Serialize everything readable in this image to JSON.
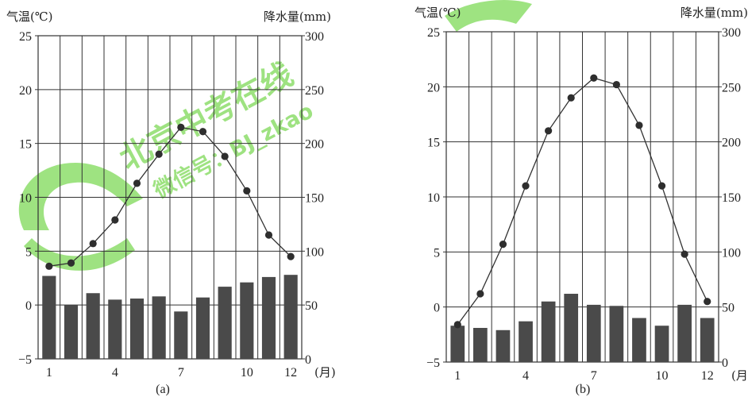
{
  "chart_data": [
    {
      "type": "bar+line",
      "caption": "(a)",
      "y_left_label": "气温(℃)",
      "y_right_label": "降水量(mm)",
      "x_unit_label": "(月)",
      "x_tick_labels": [
        "1",
        "4",
        "7",
        "10",
        "12"
      ],
      "months": [
        1,
        2,
        3,
        4,
        5,
        6,
        7,
        8,
        9,
        10,
        11,
        12
      ],
      "temperature_c": [
        3.6,
        3.9,
        5.7,
        7.9,
        11.3,
        14.0,
        16.5,
        16.1,
        13.8,
        10.6,
        6.5,
        4.5
      ],
      "precipitation_mm": [
        77,
        50,
        61,
        55,
        56,
        58,
        44,
        57,
        67,
        71,
        76,
        78
      ],
      "temp_range": [
        -5,
        25
      ],
      "temp_ticks": [
        -5,
        0,
        5,
        10,
        15,
        20,
        25
      ],
      "precip_range": [
        0,
        300
      ],
      "precip_ticks": [
        0,
        50,
        100,
        150,
        200,
        250,
        300
      ],
      "grid": true
    },
    {
      "type": "bar+line",
      "caption": "(b)",
      "y_left_label": "气温(℃)",
      "y_right_label": "降水量(mm)",
      "x_unit_label": "(月)",
      "x_tick_labels": [
        "1",
        "4",
        "7",
        "10",
        "12"
      ],
      "months": [
        1,
        2,
        3,
        4,
        5,
        6,
        7,
        8,
        9,
        10,
        11,
        12
      ],
      "temperature_c": [
        -1.6,
        1.2,
        5.7,
        11.0,
        16.0,
        19.0,
        20.8,
        20.2,
        16.5,
        11.0,
        4.8,
        0.5
      ],
      "precipitation_mm": [
        33,
        31,
        29,
        37,
        55,
        62,
        52,
        51,
        40,
        33,
        52,
        40
      ],
      "temp_range": [
        -5,
        25
      ],
      "temp_ticks": [
        -5,
        0,
        5,
        10,
        15,
        20,
        25
      ],
      "precip_range": [
        0,
        300
      ],
      "precip_ticks": [
        0,
        50,
        100,
        150,
        200,
        250,
        300
      ],
      "grid": true
    }
  ],
  "watermark": {
    "line1": "北京中考在线",
    "line2": "微信号：BJ_zkao",
    "color": "#7ed957"
  },
  "colors": {
    "bar": "#4a4a4a",
    "line": "#333333",
    "grid": "#333333"
  }
}
